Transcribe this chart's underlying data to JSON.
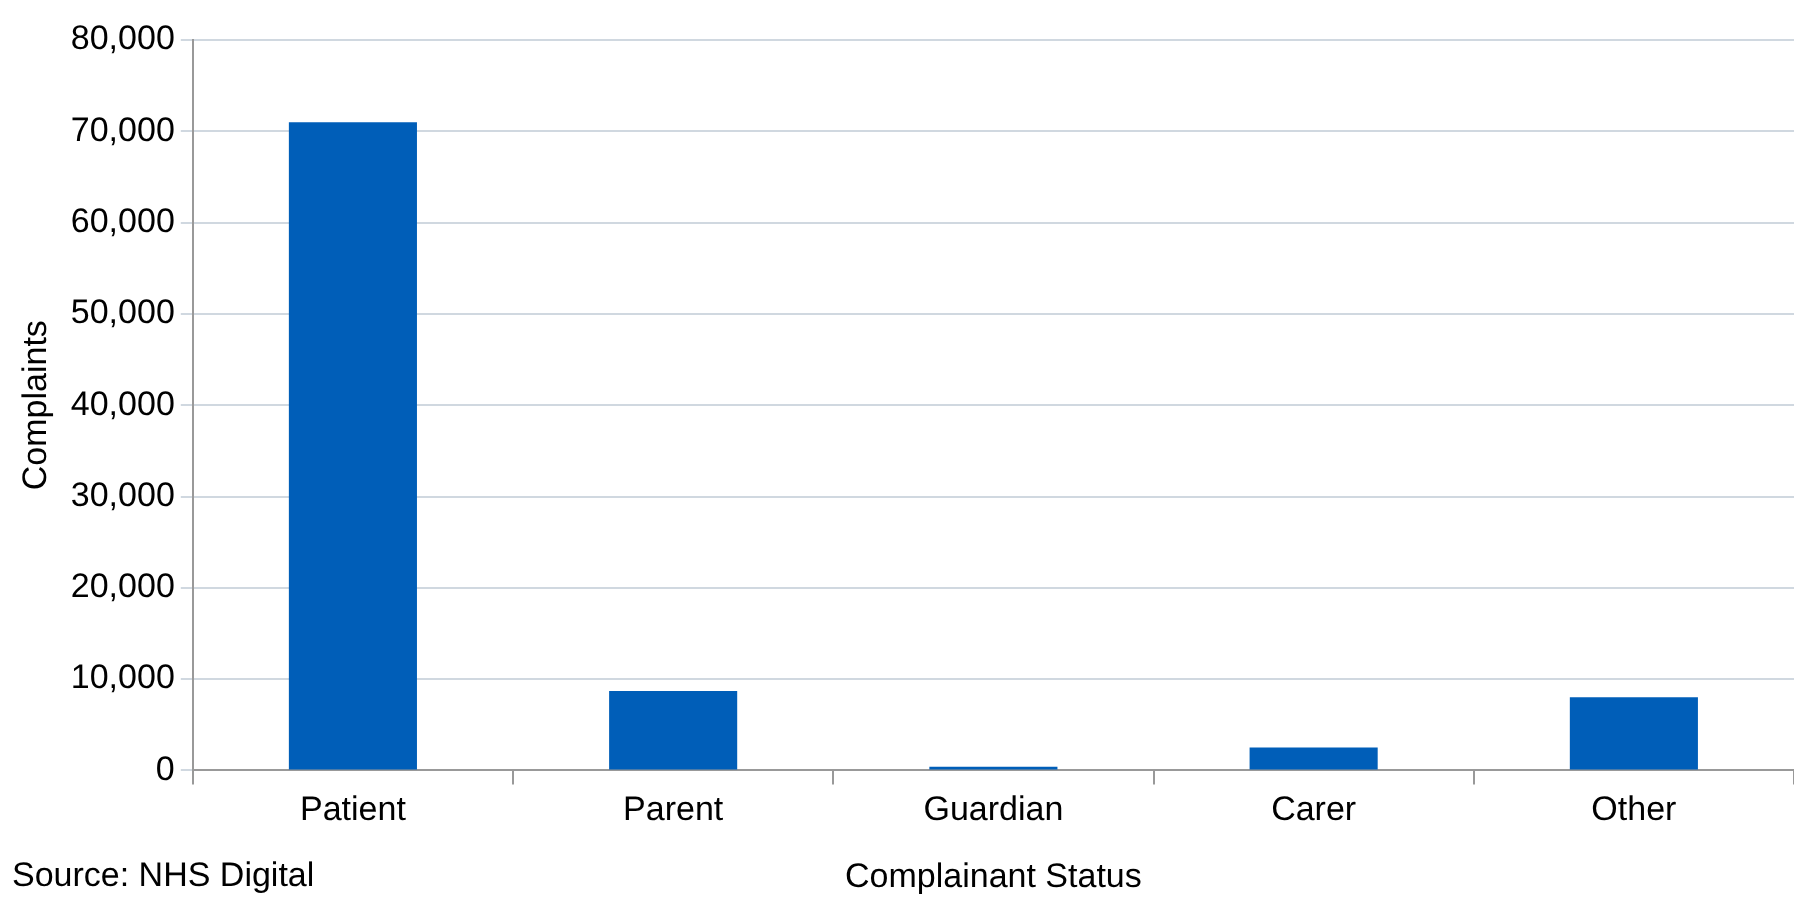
{
  "chart_data": {
    "type": "bar",
    "xlabel": "Complainant Status",
    "ylabel": "Complaints",
    "categories": [
      "Patient",
      "Parent",
      "Guardian",
      "Carer",
      "Other"
    ],
    "values": [
      71000,
      8700,
      400,
      2500,
      8000
    ],
    "color": "#005eb8",
    "ylim": [
      0,
      80000
    ],
    "yticks": [
      0,
      {
        "value": 10000,
        "label": "10,000"
      },
      {
        "value": 20000,
        "label": "20,000"
      },
      {
        "value": 30000,
        "label": "30,000"
      },
      {
        "value": 40000,
        "label": "40,000"
      },
      {
        "value": 50000,
        "label": "50,000"
      },
      {
        "value": 60000,
        "label": "60,000"
      },
      {
        "value": 70000,
        "label": "70,000"
      },
      {
        "value": 80000,
        "label": "80,000"
      }
    ],
    "grid": "y",
    "annotations": [
      "Source: NHS Digital"
    ]
  }
}
